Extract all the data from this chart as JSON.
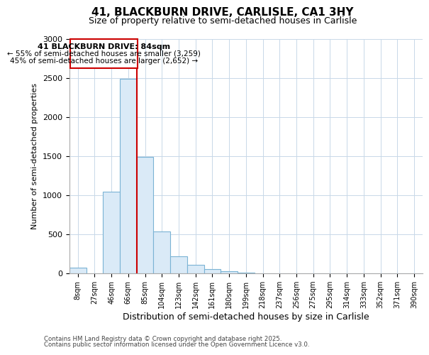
{
  "title": "41, BLACKBURN DRIVE, CARLISLE, CA1 3HY",
  "subtitle": "Size of property relative to semi-detached houses in Carlisle",
  "xlabel": "Distribution of semi-detached houses by size in Carlisle",
  "ylabel": "Number of semi-detached properties",
  "bar_labels": [
    "8sqm",
    "27sqm",
    "46sqm",
    "66sqm",
    "85sqm",
    "104sqm",
    "123sqm",
    "142sqm",
    "161sqm",
    "180sqm",
    "199sqm",
    "218sqm",
    "237sqm",
    "256sqm",
    "275sqm",
    "295sqm",
    "314sqm",
    "333sqm",
    "352sqm",
    "371sqm",
    "390sqm"
  ],
  "bar_values": [
    75,
    0,
    1050,
    2490,
    1490,
    540,
    220,
    110,
    55,
    30,
    10,
    0,
    0,
    0,
    0,
    0,
    0,
    0,
    0,
    0,
    0
  ],
  "bar_color": "#daeaf7",
  "bar_edge_color": "#7ab3d4",
  "highlight_index": 3,
  "highlight_color": "#cc0000",
  "annotation_title": "41 BLACKBURN DRIVE: 84sqm",
  "annotation_line1": "← 55% of semi-detached houses are smaller (3,259)",
  "annotation_line2": "45% of semi-detached houses are larger (2,652) →",
  "ylim": [
    0,
    3000
  ],
  "yticks": [
    0,
    500,
    1000,
    1500,
    2000,
    2500,
    3000
  ],
  "footer1": "Contains HM Land Registry data © Crown copyright and database right 2025.",
  "footer2": "Contains public sector information licensed under the Open Government Licence v3.0.",
  "bg_color": "#ffffff",
  "grid_color": "#c8d8e8"
}
